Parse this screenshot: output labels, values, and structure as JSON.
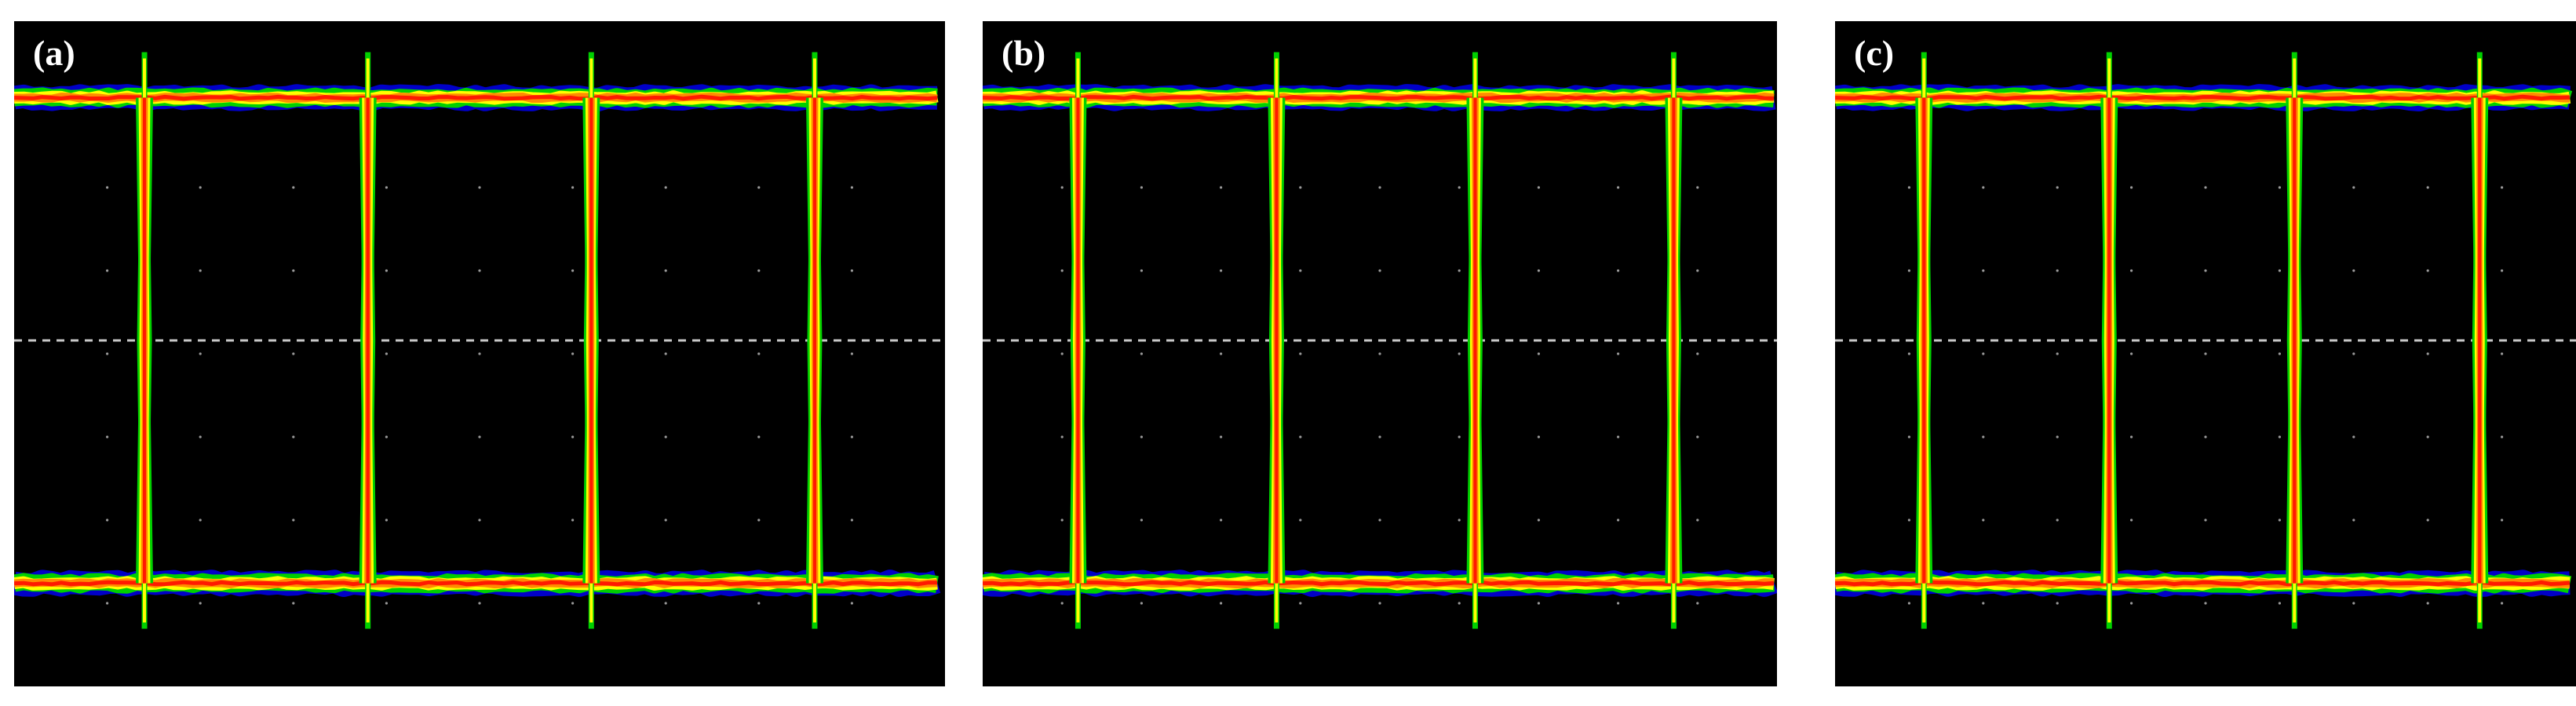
{
  "chart_data": [
    {
      "type": "eye-diagram",
      "label": "(a)",
      "levels": [
        0,
        1
      ],
      "transitions_ui": [
        0.14,
        0.38,
        0.62,
        0.86
      ],
      "threshold": 0.5,
      "grid": "dotted",
      "colormap": [
        "#0000c8",
        "#00d000",
        "#ffff00",
        "#ff8c00",
        "#ff1a00"
      ]
    },
    {
      "type": "eye-diagram",
      "label": "(b)",
      "levels": [
        0,
        1
      ],
      "transitions_ui": [
        0.12,
        0.37,
        0.62,
        0.87
      ],
      "threshold": 0.5,
      "grid": "dotted",
      "colormap": [
        "#0000c8",
        "#00d000",
        "#ffff00",
        "#ff8c00",
        "#ff1a00"
      ]
    },
    {
      "type": "eye-diagram",
      "label": "(c)",
      "levels": [
        0,
        1
      ],
      "transitions_ui": [
        0.12,
        0.37,
        0.62,
        0.87
      ],
      "threshold": 0.5,
      "grid": "dotted",
      "colormap": [
        "#0000c8",
        "#00d000",
        "#ffff00",
        "#ff8c00",
        "#ff1a00"
      ]
    }
  ]
}
